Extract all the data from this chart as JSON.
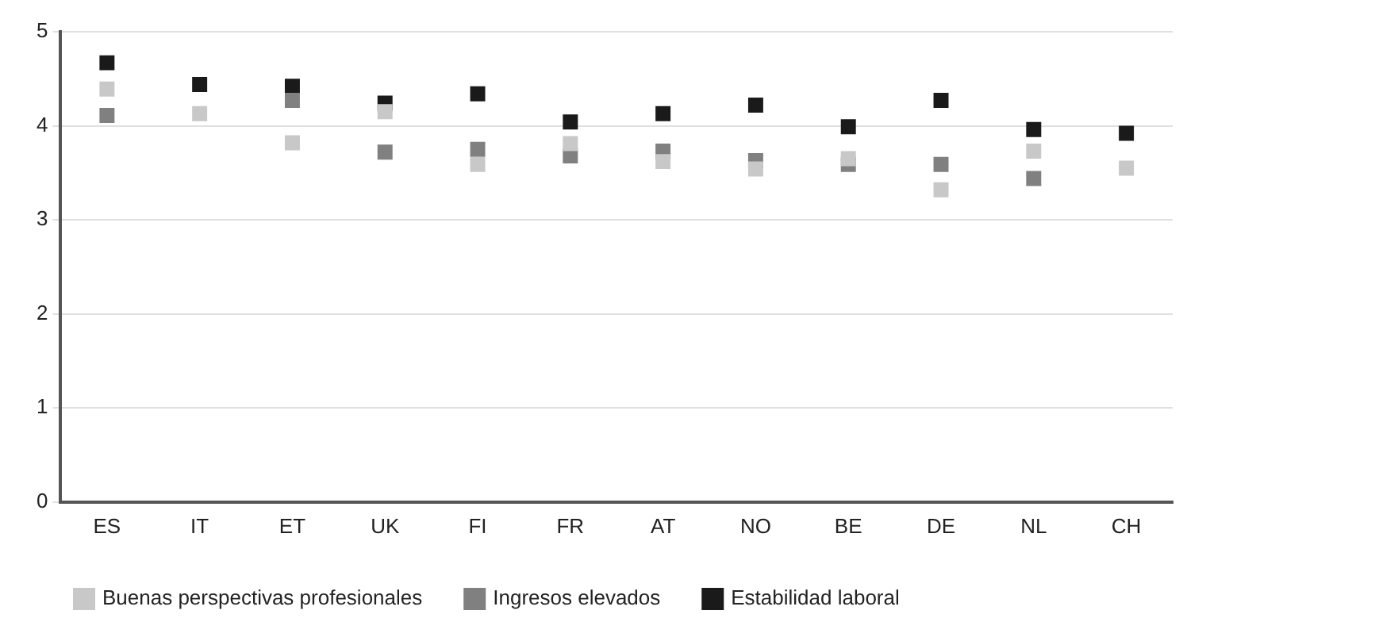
{
  "chart_data": {
    "type": "scatter",
    "categories": [
      "ES",
      "IT",
      "ET",
      "UK",
      "FI",
      "FR",
      "AT",
      "NO",
      "BE",
      "DE",
      "NL",
      "CH"
    ],
    "series": [
      {
        "name": "Estabilidad laboral",
        "color": "#1a1a1a",
        "values": [
          4.67,
          4.44,
          4.42,
          4.24,
          4.34,
          4.04,
          4.13,
          4.22,
          3.99,
          4.27,
          3.96,
          3.92
        ]
      },
      {
        "name": "Ingresos elevados",
        "color": "#808080",
        "values": [
          4.11,
          null,
          4.27,
          3.72,
          3.75,
          3.68,
          3.73,
          3.63,
          3.59,
          3.59,
          3.44,
          null
        ]
      },
      {
        "name": "Buenas perspectivas profesionales",
        "color": "#c8c8c8",
        "values": [
          4.39,
          4.13,
          3.82,
          4.15,
          3.59,
          3.81,
          3.62,
          3.54,
          3.65,
          3.32,
          3.73,
          3.55
        ]
      }
    ],
    "ylim": [
      0,
      5
    ],
    "yticks": [
      0,
      1,
      2,
      3,
      4,
      5
    ],
    "grid": "y",
    "legend": "bottom",
    "marker": "square"
  }
}
